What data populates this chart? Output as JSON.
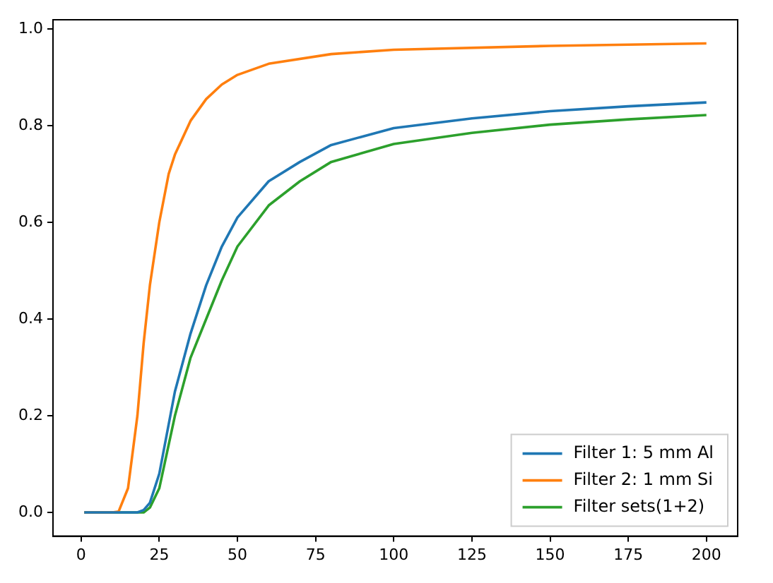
{
  "chart_data": {
    "type": "line",
    "xlim": [
      -9,
      210
    ],
    "ylim": [
      -0.049,
      1.019
    ],
    "xticks": [
      0,
      25,
      50,
      75,
      100,
      125,
      150,
      175,
      200
    ],
    "yticks": [
      {
        "value": 0,
        "label": "0.0"
      },
      {
        "value": 0.2,
        "label": "0.2"
      },
      {
        "value": 0.4,
        "label": "0.4"
      },
      {
        "value": 0.6,
        "label": "0.6"
      },
      {
        "value": 0.8,
        "label": "0.8"
      },
      {
        "value": 1,
        "label": "1.0"
      }
    ],
    "legend": "bottom right",
    "grid": false,
    "series": [
      {
        "name": "Filter 1: 5 mm Al",
        "color": "#1f77b4",
        "x": [
          1,
          10,
          18,
          20,
          22,
          25,
          30,
          35,
          40,
          45,
          50,
          60,
          70,
          80,
          100,
          125,
          150,
          175,
          200
        ],
        "values": [
          0,
          0,
          0,
          0.005,
          0.02,
          0.08,
          0.25,
          0.37,
          0.47,
          0.55,
          0.61,
          0.685,
          0.725,
          0.76,
          0.795,
          0.815,
          0.83,
          0.84,
          0.848
        ]
      },
      {
        "name": "Filter 2: 1 mm Si",
        "color": "#ff7f0e",
        "x": [
          1,
          10,
          12,
          15,
          18,
          20,
          22,
          25,
          28,
          30,
          35,
          40,
          45,
          50,
          60,
          80,
          100,
          150,
          200
        ],
        "values": [
          0,
          0,
          0.002,
          0.05,
          0.2,
          0.35,
          0.47,
          0.6,
          0.7,
          0.74,
          0.81,
          0.855,
          0.885,
          0.905,
          0.928,
          0.948,
          0.957,
          0.965,
          0.97
        ]
      },
      {
        "name": "Filter sets(1+2)",
        "color": "#2ca02c",
        "x": [
          1,
          10,
          18,
          20,
          22,
          25,
          30,
          35,
          40,
          45,
          50,
          60,
          70,
          80,
          100,
          125,
          150,
          175,
          200
        ],
        "values": [
          0,
          0,
          0,
          0,
          0.01,
          0.05,
          0.2,
          0.32,
          0.4,
          0.48,
          0.55,
          0.635,
          0.685,
          0.725,
          0.762,
          0.785,
          0.802,
          0.813,
          0.822
        ]
      }
    ]
  }
}
